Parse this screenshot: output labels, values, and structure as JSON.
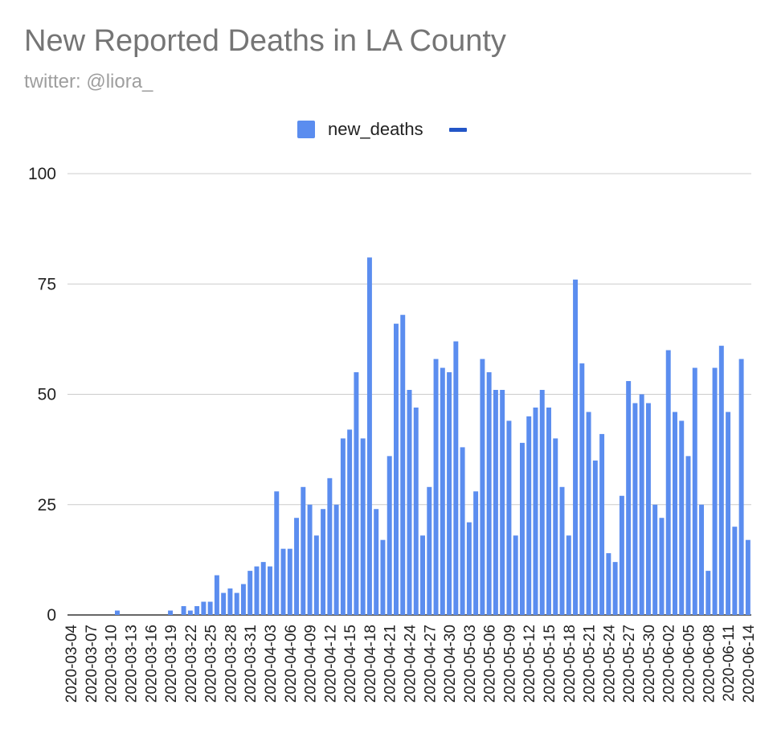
{
  "chart_data": {
    "type": "bar",
    "title": "New Reported Deaths in LA County",
    "subtitle": "twitter: @liora_",
    "xlabel": "",
    "ylabel": "",
    "ylim": [
      0,
      100
    ],
    "yticks": [
      0,
      25,
      50,
      75,
      100
    ],
    "grid": true,
    "legend_position": "top-center",
    "legend": [
      {
        "name": "new_deaths",
        "color": "#5b8def",
        "kind": "box"
      },
      {
        "name": "",
        "color": "#2356c7",
        "kind": "line"
      }
    ],
    "start_date": "2020-03-04",
    "tick_labels": [
      "2020-03-04",
      "2020-03-07",
      "2020-03-10",
      "2020-03-13",
      "2020-03-16",
      "2020-03-19",
      "2020-03-22",
      "2020-03-25",
      "2020-03-28",
      "2020-03-31",
      "2020-04-03",
      "2020-04-06",
      "2020-04-09",
      "2020-04-12",
      "2020-04-15",
      "2020-04-18",
      "2020-04-21",
      "2020-04-24",
      "2020-04-27",
      "2020-04-30",
      "2020-05-03",
      "2020-05-06",
      "2020-05-09",
      "2020-05-12",
      "2020-05-15",
      "2020-05-18",
      "2020-05-21",
      "2020-05-24",
      "2020-05-27",
      "2020-05-30",
      "2020-06-02",
      "2020-06-05",
      "2020-06-08",
      "2020-06-11",
      "2020-06-14"
    ],
    "series": [
      {
        "name": "new_deaths",
        "color": "#5b8def",
        "values": [
          0,
          0,
          0,
          0,
          0,
          0,
          0,
          1,
          0,
          0,
          0,
          0,
          0,
          0,
          0,
          1,
          0,
          2,
          1,
          2,
          3,
          3,
          9,
          5,
          6,
          5,
          7,
          10,
          11,
          12,
          11,
          28,
          15,
          15,
          22,
          29,
          25,
          18,
          24,
          31,
          25,
          40,
          42,
          55,
          40,
          81,
          24,
          17,
          36,
          66,
          68,
          51,
          47,
          18,
          29,
          58,
          56,
          55,
          62,
          38,
          21,
          28,
          58,
          55,
          51,
          51,
          44,
          18,
          39,
          45,
          47,
          51,
          47,
          40,
          29,
          18,
          76,
          57,
          46,
          35,
          41,
          14,
          12,
          27,
          53,
          48,
          50,
          48,
          25,
          22,
          60,
          46,
          44,
          36,
          56,
          25,
          10,
          56,
          61,
          46,
          20,
          58,
          17
        ]
      }
    ]
  }
}
